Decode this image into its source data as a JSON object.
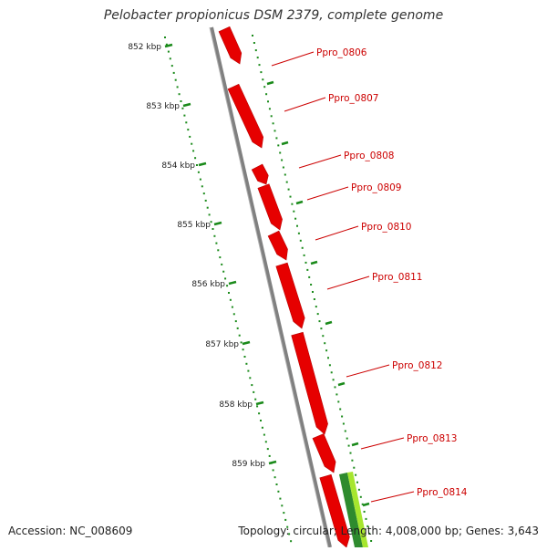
{
  "title": "Pelobacter propionicus DSM 2379, complete genome",
  "accession": "Accession: NC_008609",
  "topology": "Topology: circular; Length: 4,008,000 bp; Genes: 3,643",
  "ticks": [
    {
      "label": "852 kbp"
    },
    {
      "label": "853 kbp"
    },
    {
      "label": "854 kbp"
    },
    {
      "label": "855 kbp"
    },
    {
      "label": "856 kbp"
    },
    {
      "label": "857 kbp"
    },
    {
      "label": "858 kbp"
    },
    {
      "label": "859 kbp"
    }
  ],
  "genes": [
    {
      "label": "Ppro_0806",
      "color": "#e60000"
    },
    {
      "label": "Ppro_0807",
      "color": "#e60000"
    },
    {
      "label": "Ppro_0808",
      "color": "#e60000"
    },
    {
      "label": "Ppro_0809",
      "color": "#e60000"
    },
    {
      "label": "Ppro_0810",
      "color": "#e60000"
    },
    {
      "label": "Ppro_0811",
      "color": "#e60000"
    },
    {
      "label": "Ppro_0812",
      "color": "#e60000"
    },
    {
      "label": "Ppro_0813",
      "color": "#e60000"
    },
    {
      "label": "Ppro_0814",
      "color": "#e60000"
    }
  ],
  "colors": {
    "gene_red": "#e60000",
    "label_red": "#cc0000",
    "backbone": "#808080",
    "tick_green": "#1a8a1a",
    "gene_green_dark": "#2e8b2e",
    "gene_green_light": "#a6e62e"
  }
}
